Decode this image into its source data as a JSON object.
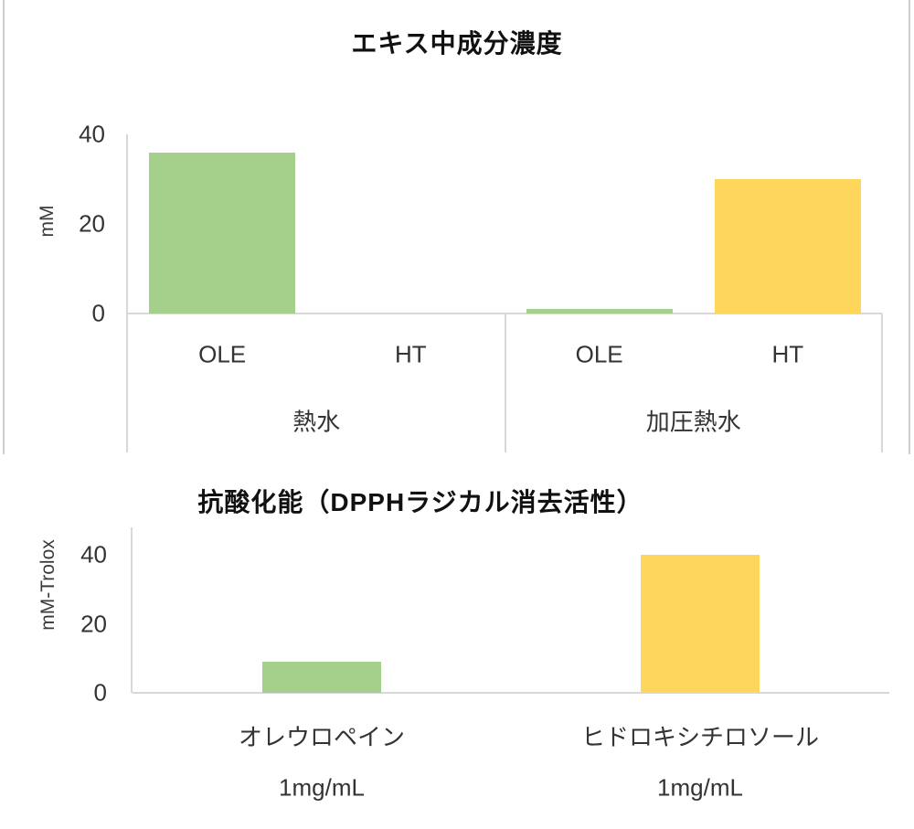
{
  "background_color": "#FFFFFF",
  "accent_colors": {
    "green": "#A5D08C",
    "yellow": "#FFD65C",
    "axis_gray": "#D8D8D8"
  },
  "chart_data": [
    {
      "type": "bar",
      "title": "エキス中成分濃度",
      "ylabel": "mM",
      "ylim": [
        0,
        40
      ],
      "yticks": [
        0,
        20,
        40
      ],
      "grid": false,
      "legend": "none",
      "groups": [
        {
          "label": "熱水",
          "categories": [
            "OLE",
            "HT"
          ],
          "values": [
            36,
            0
          ]
        },
        {
          "label": "加圧熱水",
          "categories": [
            "OLE",
            "HT"
          ],
          "values": [
            1,
            30
          ]
        }
      ],
      "series_colors": {
        "OLE": "#A5D08C",
        "HT": "#FFD65C"
      }
    },
    {
      "type": "bar",
      "title": "抗酸化能（DPPHラジカル消去活性）",
      "ylabel": "mM-Trolox",
      "ylim": [
        0,
        40
      ],
      "yticks": [
        0,
        20,
        40
      ],
      "grid": false,
      "legend": "none",
      "groups": [
        {
          "label": "1mg/mL",
          "categories": [
            "オレウロペイン"
          ],
          "values": [
            9
          ]
        },
        {
          "label": "1mg/mL",
          "categories": [
            "ヒドロキシチロソール"
          ],
          "values": [
            40
          ]
        }
      ],
      "series_colors": {
        "オレウロペイン": "#A5D08C",
        "ヒドロキシチロソール": "#FFD65C"
      }
    }
  ]
}
